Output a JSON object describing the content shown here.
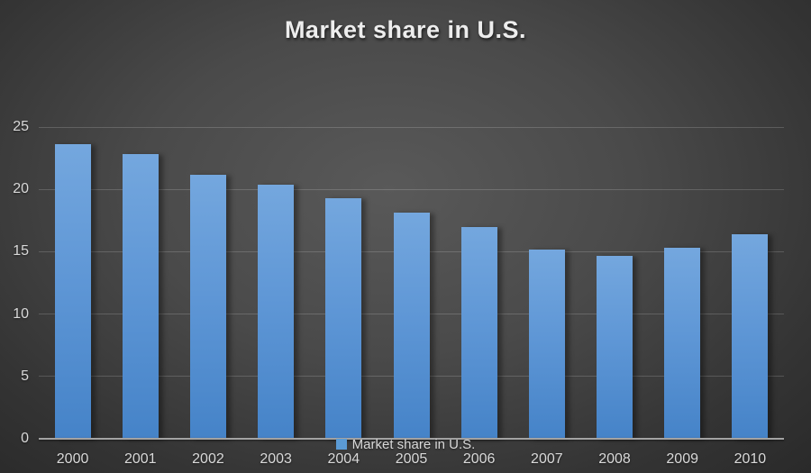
{
  "title": "Market share in U.S.",
  "legend": {
    "label": "Market share in U.S.",
    "marker_color": "#5b9bd5"
  },
  "colors": {
    "bar_gradient_top": "#74a7de",
    "bar_gradient_bottom": "#4583c8",
    "background_center": "#595959",
    "background_edge": "#262626",
    "axis_line": "#a3a3a3",
    "gridline": "rgba(255,255,255,0.17)",
    "tick_text": "#d9d9d9",
    "title_text": "#ededed"
  },
  "chart_data": {
    "type": "bar",
    "title": "Market share in U.S.",
    "categories": [
      "2000",
      "2001",
      "2002",
      "2003",
      "2004",
      "2005",
      "2006",
      "2007",
      "2008",
      "2009",
      "2010"
    ],
    "values": [
      23.6,
      22.8,
      21.2,
      20.4,
      19.3,
      18.1,
      17.0,
      15.2,
      14.7,
      15.3,
      16.4
    ],
    "xlabel": "",
    "ylabel": "",
    "ylim": [
      0,
      25
    ],
    "yticks": [
      0,
      5,
      10,
      15,
      20,
      25
    ],
    "grid": true,
    "legend_entries": [
      "Market share in U.S."
    ],
    "legend_position": "bottom-center"
  }
}
